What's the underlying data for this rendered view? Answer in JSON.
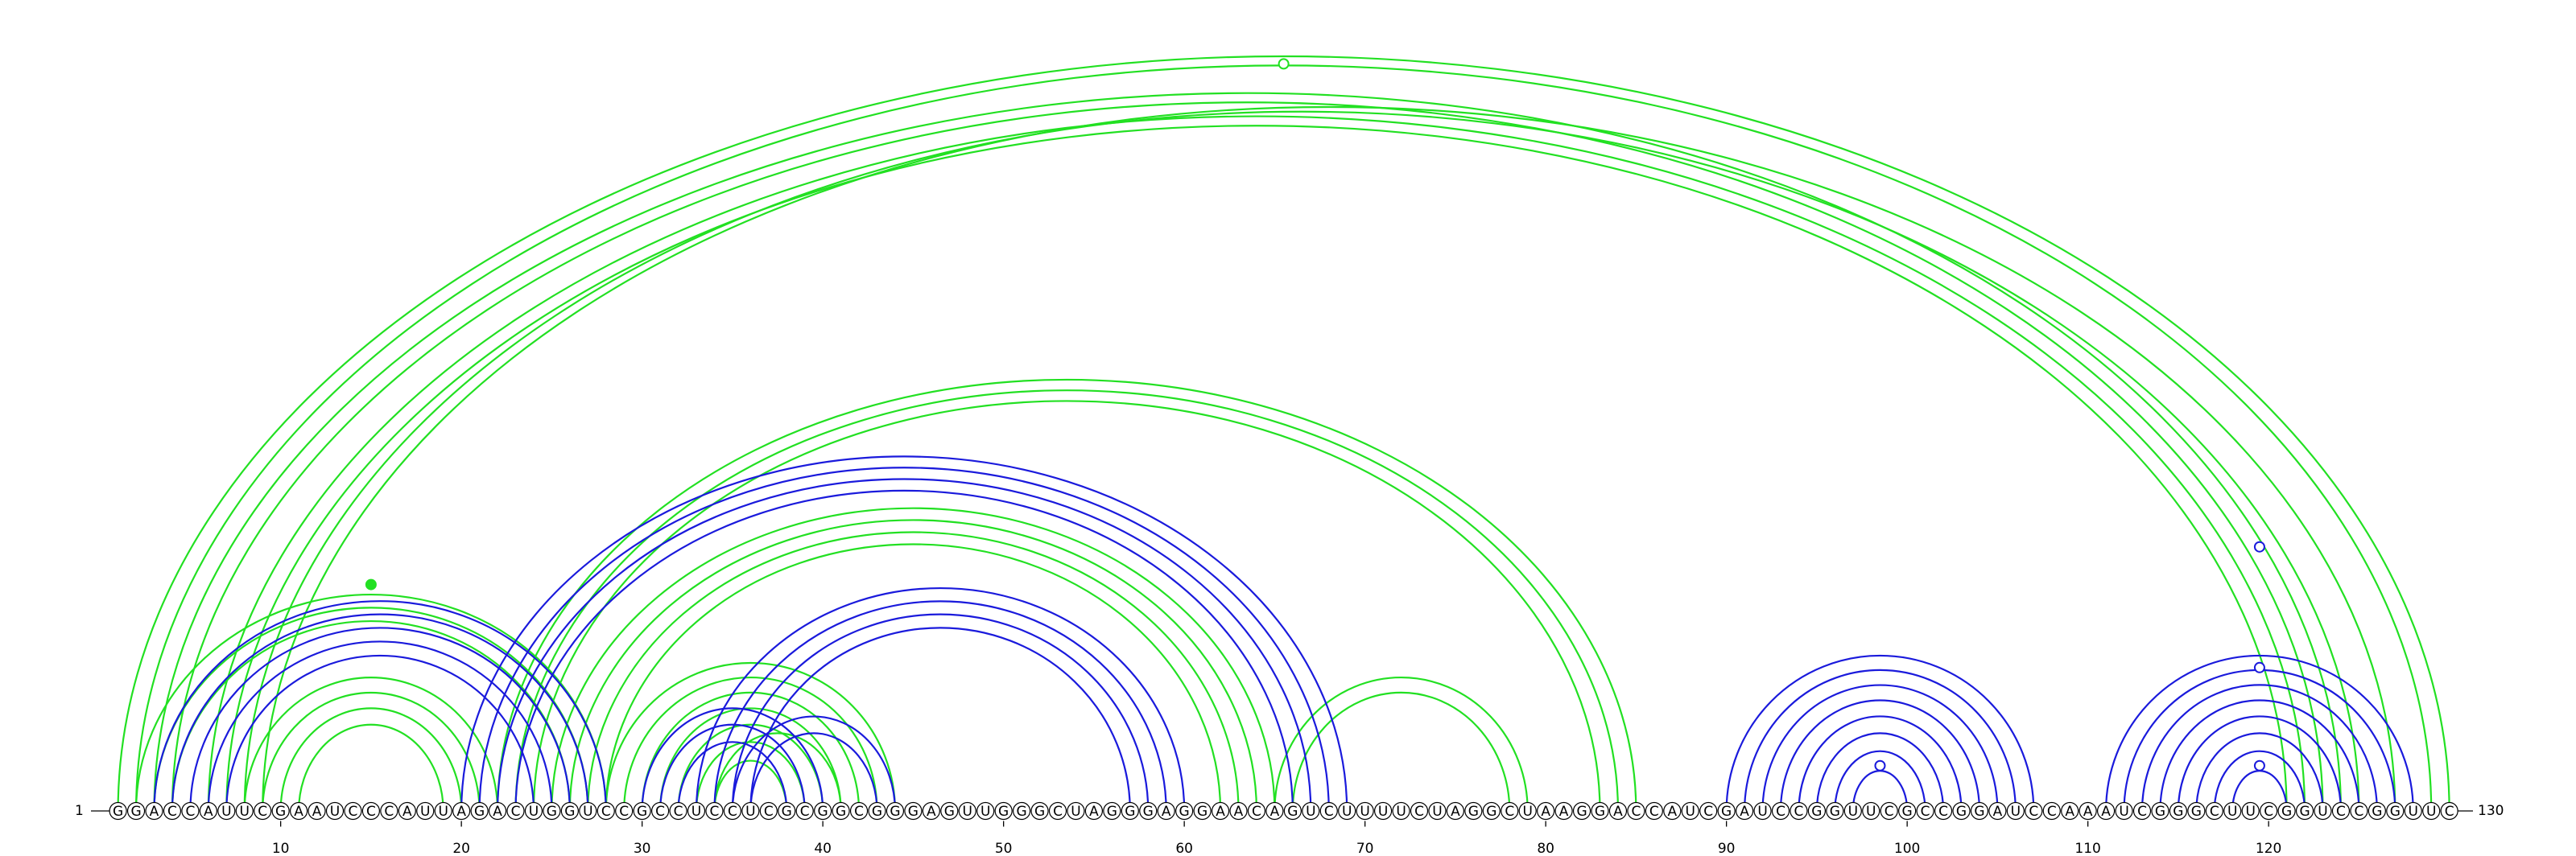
{
  "sequence": "GGACCAUUCGAAUCCCAUUAGACUGGUCCGCCUCCUCGCGGCGGGAGUUGGGCUAGGGAGGAACAGUCUUUUCUAGGCUAAGGACCAUCGAUCCGGUUCGCCGGAUCCAAAUCGGGCUUCGGUCCGGUUC",
  "start_label": "1",
  "end_label": "130",
  "ticks": [
    10,
    20,
    30,
    40,
    50,
    60,
    70,
    80,
    90,
    100,
    110,
    120
  ],
  "colors": {
    "green": "#22e022",
    "blue": "#1a1adc"
  },
  "green_arcs": [
    [
      1,
      130
    ],
    [
      2,
      129
    ],
    [
      3,
      124
    ],
    [
      4,
      123
    ],
    [
      6,
      122
    ],
    [
      7,
      121
    ],
    [
      8,
      125
    ],
    [
      9,
      127
    ],
    [
      2,
      28
    ],
    [
      3,
      27
    ],
    [
      4,
      26
    ],
    [
      8,
      22
    ],
    [
      9,
      21
    ],
    [
      10,
      20
    ],
    [
      11,
      19
    ],
    [
      22,
      85
    ],
    [
      23,
      84
    ],
    [
      24,
      83
    ],
    [
      25,
      65
    ],
    [
      26,
      64
    ],
    [
      27,
      63
    ],
    [
      28,
      62
    ],
    [
      28,
      44
    ],
    [
      29,
      43
    ],
    [
      30,
      42
    ],
    [
      31,
      41
    ],
    [
      32,
      40
    ],
    [
      33,
      39
    ],
    [
      34,
      38
    ],
    [
      65,
      79
    ],
    [
      66,
      78
    ],
    [
      34,
      41
    ]
  ],
  "blue_arcs": [
    [
      3,
      28
    ],
    [
      4,
      27
    ],
    [
      5,
      26
    ],
    [
      6,
      25
    ],
    [
      7,
      24
    ],
    [
      20,
      69
    ],
    [
      21,
      68
    ],
    [
      22,
      67
    ],
    [
      23,
      66
    ],
    [
      30,
      40
    ],
    [
      31,
      39
    ],
    [
      32,
      38
    ],
    [
      33,
      60
    ],
    [
      34,
      59
    ],
    [
      35,
      58
    ],
    [
      36,
      57
    ],
    [
      90,
      107
    ],
    [
      91,
      106
    ],
    [
      92,
      105
    ],
    [
      93,
      104
    ],
    [
      94,
      103
    ],
    [
      95,
      102
    ],
    [
      96,
      101
    ],
    [
      97,
      100
    ],
    [
      111,
      128
    ],
    [
      112,
      127
    ],
    [
      113,
      126
    ],
    [
      114,
      125
    ],
    [
      115,
      124
    ],
    [
      116,
      123
    ],
    [
      117,
      122
    ],
    [
      118,
      121
    ],
    [
      35,
      44
    ],
    [
      36,
      43
    ]
  ],
  "markers": [
    {
      "color": "green",
      "position": 65.5,
      "level": 0.99,
      "filled": false
    },
    {
      "color": "green",
      "position": 15.0,
      "level": 0.3,
      "filled": true
    },
    {
      "color": "blue",
      "position": 98.5,
      "level": 0.06,
      "filled": false
    },
    {
      "color": "blue",
      "position": 119.5,
      "level": 0.35,
      "filled": false
    },
    {
      "color": "blue",
      "position": 119.5,
      "level": 0.19,
      "filled": false
    },
    {
      "color": "blue",
      "position": 119.5,
      "level": 0.06,
      "filled": false
    }
  ]
}
